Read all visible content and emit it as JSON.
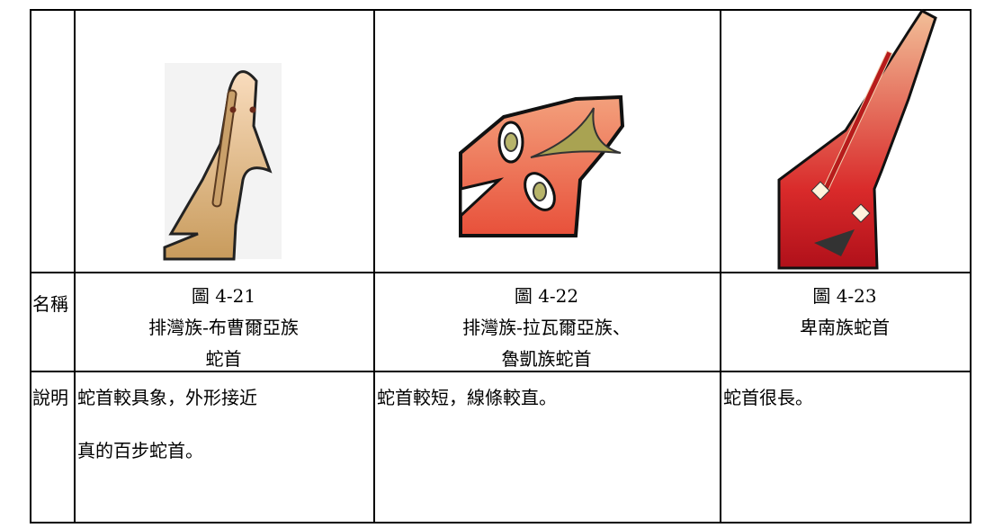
{
  "row_headers": {
    "name": "名稱",
    "description": "說明"
  },
  "figures": [
    {
      "caption": [
        "圖 4-21",
        "排灣族-布曹爾亞族",
        "蛇首"
      ],
      "description": [
        "蛇首較具象，外形接近",
        "真的百步蛇首。"
      ]
    },
    {
      "caption": [
        "圖 4-22",
        "排灣族-拉瓦爾亞族、",
        "魯凱族蛇首"
      ],
      "description": [
        "蛇首較短，線條較直。"
      ]
    },
    {
      "caption": [
        "圖 4-23",
        "卑南族蛇首"
      ],
      "description": [
        "蛇首很長。"
      ]
    }
  ]
}
